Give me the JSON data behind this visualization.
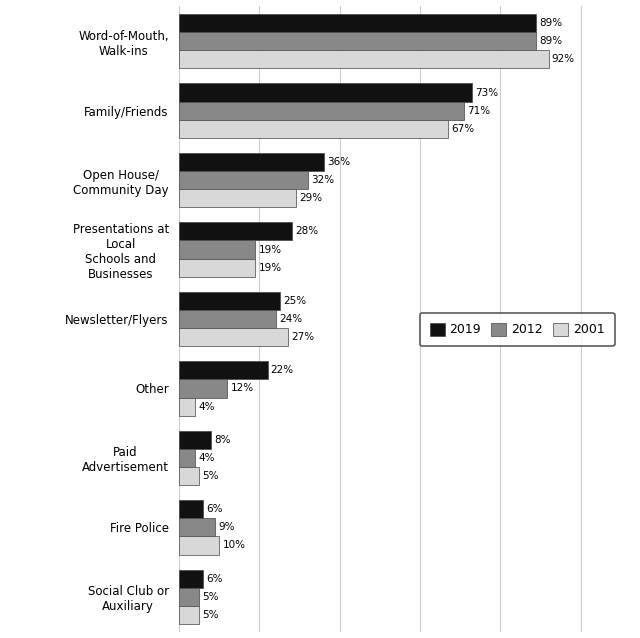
{
  "categories": [
    "Word-of-Mouth,\nWalk-ins",
    "Family/Friends",
    "Open House/\nCommunity Day",
    "Presentations at\nLocal\nSchools and\nBusinesses",
    "Newsletter/Flyers",
    "Other",
    "Paid\nAdvertisement",
    "Fire Police",
    "Social Club or\nAuxiliary"
  ],
  "series": {
    "2019": [
      89,
      73,
      36,
      28,
      25,
      22,
      8,
      6,
      6
    ],
    "2012": [
      89,
      71,
      32,
      19,
      24,
      12,
      4,
      9,
      5
    ],
    "2001": [
      92,
      67,
      29,
      19,
      27,
      4,
      5,
      10,
      5
    ]
  },
  "colors": {
    "2019": "#111111",
    "2012": "#888888",
    "2001": "#d8d8d8"
  },
  "bar_height": 0.26,
  "xlim": [
    0,
    110
  ],
  "figsize": [
    6.4,
    6.38
  ],
  "dpi": 100,
  "background_color": "#ffffff",
  "grid_color": "#cccccc",
  "legend_labels": [
    "2019",
    "2012",
    "2001"
  ],
  "legend_colors": [
    "#111111",
    "#888888",
    "#d8d8d8"
  ]
}
